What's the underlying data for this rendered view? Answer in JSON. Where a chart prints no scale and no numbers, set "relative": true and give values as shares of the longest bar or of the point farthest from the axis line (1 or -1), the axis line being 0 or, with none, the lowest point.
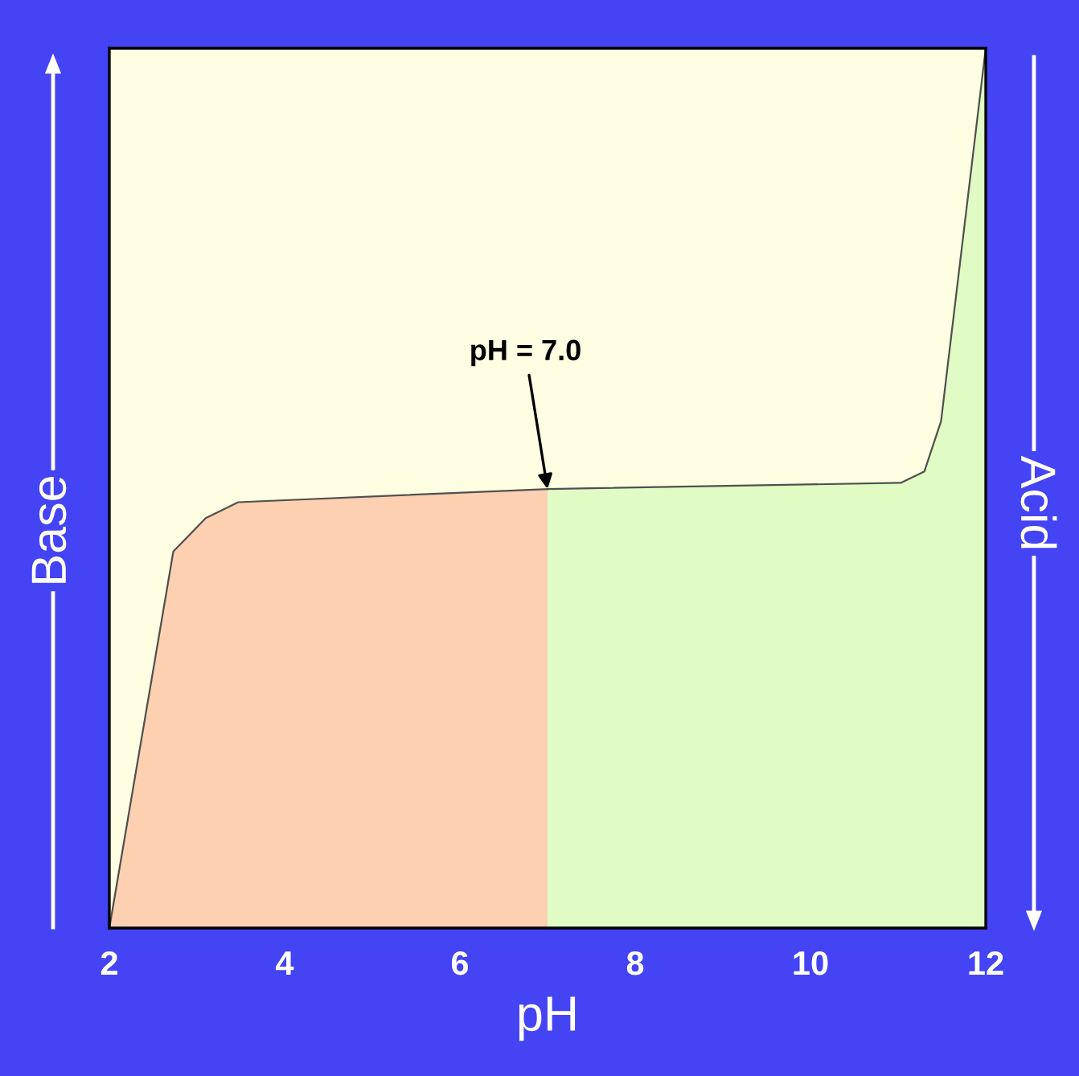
{
  "chart_data": {
    "type": "area",
    "relative": true,
    "xlabel": "pH",
    "ylabel": "Base",
    "y2label": "Acid",
    "xlim": [
      2,
      12
    ],
    "xticks": [
      2,
      4,
      6,
      8,
      10,
      12
    ],
    "grid": false,
    "series": [
      {
        "color": "#fcd0b0",
        "x": [
          2,
          2.73,
          3.1,
          3.47,
          7.0
        ],
        "values": [
          0,
          0.428,
          0.466,
          0.484,
          0.499
        ]
      },
      {
        "color": "#e0fcc4",
        "x": [
          7.0,
          11.03,
          11.3,
          11.49,
          12
        ],
        "values": [
          0.499,
          0.506,
          0.519,
          0.576,
          1
        ]
      }
    ],
    "annotations": [
      {
        "text": "pH = 7.0",
        "x": 7.0,
        "y": 0.499
      }
    ]
  }
}
